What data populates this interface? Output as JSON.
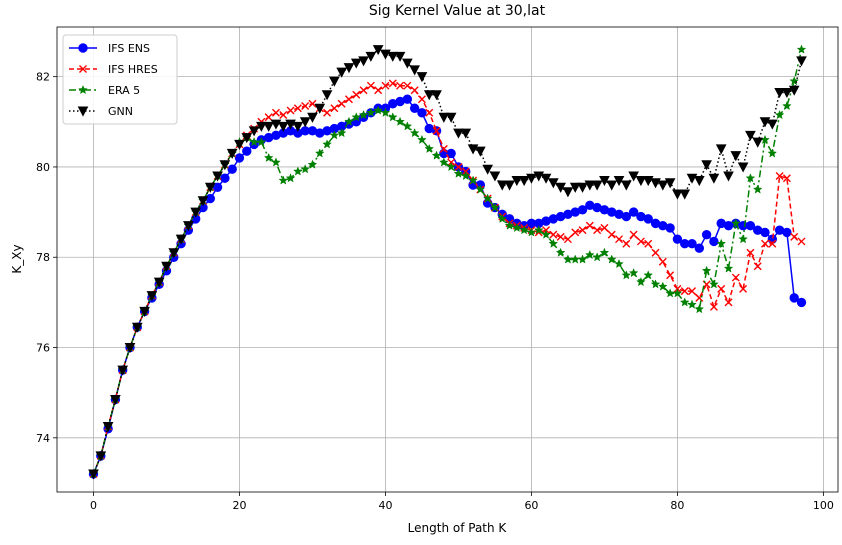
{
  "chart_data": {
    "type": "line",
    "title": "Sig Kernel Value at 30,lat",
    "xlabel": "Length of Path K",
    "ylabel": "K_Xy",
    "xlim": [
      -5,
      102
    ],
    "ylim": [
      72.8,
      83.1
    ],
    "xticks": [
      0,
      20,
      40,
      60,
      80,
      100
    ],
    "yticks": [
      74,
      76,
      78,
      80,
      82
    ],
    "grid": true,
    "legend_position": "upper-left",
    "series": [
      {
        "name": "IFS ENS",
        "color": "#0000ff",
        "line": "solid",
        "marker": "circle",
        "x": [
          0,
          1,
          2,
          3,
          4,
          5,
          6,
          7,
          8,
          9,
          10,
          11,
          12,
          13,
          14,
          15,
          16,
          17,
          18,
          19,
          20,
          21,
          22,
          23,
          24,
          25,
          26,
          27,
          28,
          29,
          30,
          31,
          32,
          33,
          34,
          35,
          36,
          37,
          38,
          39,
          40,
          41,
          42,
          43,
          44,
          45,
          46,
          47,
          48,
          49,
          50,
          51,
          52,
          53,
          54,
          55,
          56,
          57,
          58,
          59,
          60,
          61,
          62,
          63,
          64,
          65,
          66,
          67,
          68,
          69,
          70,
          71,
          72,
          73,
          74,
          75,
          76,
          77,
          78,
          79,
          80,
          81,
          82,
          83,
          84,
          85,
          86,
          87,
          88,
          89,
          90,
          91,
          92,
          93,
          94,
          95,
          96,
          97
        ],
        "y": [
          73.2,
          73.6,
          74.2,
          74.85,
          75.5,
          76.0,
          76.45,
          76.8,
          77.1,
          77.4,
          77.7,
          78.0,
          78.3,
          78.6,
          78.85,
          79.1,
          79.3,
          79.55,
          79.75,
          79.95,
          80.2,
          80.35,
          80.5,
          80.6,
          80.65,
          80.7,
          80.75,
          80.8,
          80.75,
          80.8,
          80.8,
          80.75,
          80.8,
          80.85,
          80.9,
          80.95,
          81.0,
          81.1,
          81.2,
          81.3,
          81.3,
          81.4,
          81.45,
          81.5,
          81.3,
          81.2,
          80.85,
          80.8,
          80.3,
          80.3,
          80.0,
          79.9,
          79.6,
          79.6,
          79.2,
          79.1,
          78.95,
          78.85,
          78.75,
          78.7,
          78.75,
          78.75,
          78.8,
          78.85,
          78.9,
          78.95,
          79.0,
          79.05,
          79.15,
          79.1,
          79.05,
          79.0,
          78.95,
          78.9,
          79.0,
          78.9,
          78.85,
          78.75,
          78.7,
          78.65,
          78.4,
          78.3,
          78.3,
          78.2,
          78.5,
          78.35,
          78.75,
          78.7,
          78.75,
          78.7,
          78.7,
          78.6,
          78.55,
          78.4,
          78.6,
          78.55,
          77.1,
          77.0
        ]
      },
      {
        "name": "IFS HRES",
        "color": "#ff0000",
        "line": "dashed",
        "marker": "x",
        "x": [
          0,
          1,
          2,
          3,
          4,
          5,
          6,
          7,
          8,
          9,
          10,
          11,
          12,
          13,
          14,
          15,
          16,
          17,
          18,
          19,
          20,
          21,
          22,
          23,
          24,
          25,
          26,
          27,
          28,
          29,
          30,
          31,
          32,
          33,
          34,
          35,
          36,
          37,
          38,
          39,
          40,
          41,
          42,
          43,
          44,
          45,
          46,
          47,
          48,
          49,
          50,
          51,
          52,
          53,
          54,
          55,
          56,
          57,
          58,
          59,
          60,
          61,
          62,
          63,
          64,
          65,
          66,
          67,
          68,
          69,
          70,
          71,
          72,
          73,
          74,
          75,
          76,
          77,
          78,
          79,
          80,
          81,
          82,
          83,
          84,
          85,
          86,
          87,
          88,
          89,
          90,
          91,
          92,
          93,
          94,
          95,
          96,
          97
        ],
        "y": [
          73.2,
          73.6,
          74.25,
          74.85,
          75.5,
          76.0,
          76.45,
          76.8,
          77.15,
          77.45,
          77.8,
          78.1,
          78.4,
          78.7,
          79.0,
          79.25,
          79.55,
          79.8,
          80.05,
          80.3,
          80.5,
          80.7,
          80.85,
          81.0,
          81.1,
          81.2,
          81.15,
          81.25,
          81.3,
          81.35,
          81.4,
          81.3,
          81.2,
          81.3,
          81.4,
          81.5,
          81.6,
          81.7,
          81.8,
          81.7,
          81.8,
          81.85,
          81.8,
          81.8,
          81.7,
          81.5,
          81.2,
          80.8,
          80.4,
          80.1,
          80.0,
          79.9,
          79.7,
          79.5,
          79.3,
          79.1,
          78.9,
          78.75,
          78.7,
          78.65,
          78.6,
          78.55,
          78.6,
          78.5,
          78.45,
          78.4,
          78.55,
          78.6,
          78.7,
          78.6,
          78.65,
          78.5,
          78.4,
          78.3,
          78.5,
          78.35,
          78.3,
          78.1,
          77.9,
          77.6,
          77.3,
          77.25,
          77.25,
          77.1,
          77.4,
          76.9,
          77.3,
          77.0,
          77.55,
          77.3,
          78.1,
          77.8,
          78.3,
          78.3,
          79.8,
          79.75,
          78.45,
          78.35
        ]
      },
      {
        "name": "ERA 5",
        "color": "#008000",
        "line": "dashdot",
        "marker": "star",
        "x": [
          0,
          1,
          2,
          3,
          4,
          5,
          6,
          7,
          8,
          9,
          10,
          11,
          12,
          13,
          14,
          15,
          16,
          17,
          18,
          19,
          20,
          21,
          22,
          23,
          24,
          25,
          26,
          27,
          28,
          29,
          30,
          31,
          32,
          33,
          34,
          35,
          36,
          37,
          38,
          39,
          40,
          41,
          42,
          43,
          44,
          45,
          46,
          47,
          48,
          49,
          50,
          51,
          52,
          53,
          54,
          55,
          56,
          57,
          58,
          59,
          60,
          61,
          62,
          63,
          64,
          65,
          66,
          67,
          68,
          69,
          70,
          71,
          72,
          73,
          74,
          75,
          76,
          77,
          78,
          79,
          80,
          81,
          82,
          83,
          84,
          85,
          86,
          87,
          88,
          89,
          90,
          91,
          92,
          93,
          94,
          95,
          96,
          97
        ],
        "y": [
          73.2,
          73.6,
          74.25,
          74.85,
          75.5,
          76.0,
          76.45,
          76.8,
          77.15,
          77.45,
          77.8,
          78.1,
          78.4,
          78.7,
          79.0,
          79.25,
          79.55,
          79.8,
          80.05,
          80.3,
          80.55,
          80.65,
          80.55,
          80.55,
          80.2,
          80.1,
          79.7,
          79.75,
          79.9,
          79.95,
          80.05,
          80.3,
          80.5,
          80.7,
          80.75,
          81.0,
          81.1,
          81.15,
          81.2,
          81.25,
          81.2,
          81.1,
          81.0,
          80.9,
          80.75,
          80.6,
          80.4,
          80.25,
          80.1,
          80.0,
          79.85,
          79.8,
          79.7,
          79.5,
          79.3,
          79.1,
          78.85,
          78.7,
          78.65,
          78.6,
          78.55,
          78.6,
          78.5,
          78.3,
          78.1,
          77.95,
          77.95,
          77.95,
          78.05,
          78.0,
          78.1,
          77.95,
          77.85,
          77.6,
          77.65,
          77.45,
          77.6,
          77.4,
          77.35,
          77.2,
          77.2,
          77.0,
          76.95,
          76.85,
          77.7,
          77.4,
          78.3,
          77.75,
          78.75,
          78.4,
          79.75,
          79.5,
          80.6,
          80.3,
          81.15,
          81.35,
          81.9,
          82.6
        ]
      },
      {
        "name": "GNN",
        "color": "#000000",
        "line": "dotted",
        "marker": "triangle-down",
        "x": [
          0,
          1,
          2,
          3,
          4,
          5,
          6,
          7,
          8,
          9,
          10,
          11,
          12,
          13,
          14,
          15,
          16,
          17,
          18,
          19,
          20,
          21,
          22,
          23,
          24,
          25,
          26,
          27,
          28,
          29,
          30,
          31,
          32,
          33,
          34,
          35,
          36,
          37,
          38,
          39,
          40,
          41,
          42,
          43,
          44,
          45,
          46,
          47,
          48,
          49,
          50,
          51,
          52,
          53,
          54,
          55,
          56,
          57,
          58,
          59,
          60,
          61,
          62,
          63,
          64,
          65,
          66,
          67,
          68,
          69,
          70,
          71,
          72,
          73,
          74,
          75,
          76,
          77,
          78,
          79,
          80,
          81,
          82,
          83,
          84,
          85,
          86,
          87,
          88,
          89,
          90,
          91,
          92,
          93,
          94,
          95,
          96,
          97
        ],
        "y": [
          73.2,
          73.6,
          74.25,
          74.85,
          75.5,
          76.0,
          76.45,
          76.8,
          77.15,
          77.45,
          77.8,
          78.1,
          78.4,
          78.7,
          79.0,
          79.25,
          79.55,
          79.8,
          80.05,
          80.3,
          80.5,
          80.65,
          80.8,
          80.9,
          80.9,
          80.95,
          80.9,
          80.95,
          80.9,
          81.0,
          81.1,
          81.3,
          81.6,
          81.9,
          82.1,
          82.2,
          82.3,
          82.35,
          82.45,
          82.6,
          82.5,
          82.45,
          82.45,
          82.3,
          82.15,
          82.0,
          81.6,
          81.6,
          81.1,
          81.1,
          80.75,
          80.75,
          80.4,
          80.35,
          79.95,
          79.8,
          79.6,
          79.6,
          79.7,
          79.7,
          79.75,
          79.8,
          79.75,
          79.65,
          79.55,
          79.45,
          79.55,
          79.55,
          79.6,
          79.6,
          79.7,
          79.6,
          79.7,
          79.6,
          79.8,
          79.7,
          79.7,
          79.65,
          79.6,
          79.65,
          79.4,
          79.4,
          79.75,
          79.7,
          80.05,
          79.75,
          80.4,
          79.8,
          80.25,
          80.0,
          80.7,
          80.55,
          81.0,
          80.95,
          81.65,
          81.65,
          81.7,
          82.35
        ]
      }
    ]
  }
}
